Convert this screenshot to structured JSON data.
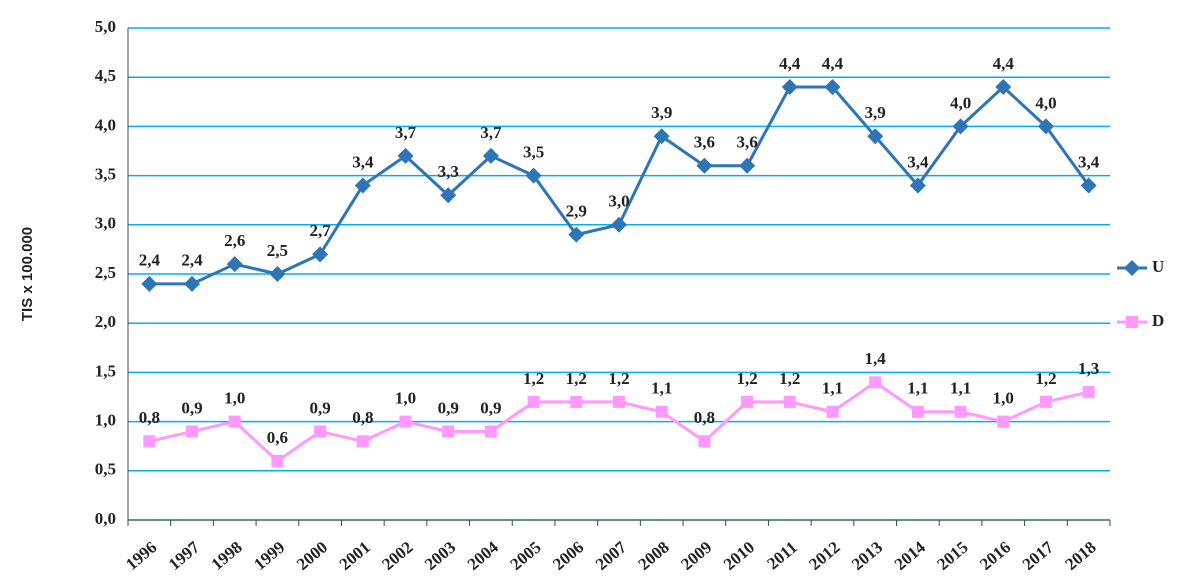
{
  "chart_data": {
    "type": "line",
    "y_label": "TIS x 100.000",
    "categories": [
      "1996",
      "1997",
      "1998",
      "1999",
      "2000",
      "2001",
      "2002",
      "2003",
      "2004",
      "2005",
      "2006",
      "2007",
      "2008",
      "2009",
      "2010",
      "2011",
      "2012",
      "2013",
      "2014",
      "2015",
      "2016",
      "2017",
      "2018"
    ],
    "series": [
      {
        "name": "U",
        "color": "#2e75b6",
        "marker": "diamond",
        "values": [
          2.4,
          2.4,
          2.6,
          2.5,
          2.7,
          3.4,
          3.7,
          3.3,
          3.7,
          3.5,
          2.9,
          3.0,
          3.9,
          3.6,
          3.6,
          4.4,
          4.4,
          3.9,
          3.4,
          4.0,
          4.4,
          4.0,
          3.4
        ],
        "value_labels": [
          "2,4",
          "2,4",
          "2,6",
          "2,5",
          "2,7",
          "3,4",
          "3,7",
          "3,3",
          "3,7",
          "3,5",
          "2,9",
          "3,0",
          "3,9",
          "3,6",
          "3,6",
          "4,4",
          "4,4",
          "3,9",
          "3,4",
          "4,0",
          "4,4",
          "4,0",
          "3,4"
        ]
      },
      {
        "name": "D",
        "color": "#ff99ff",
        "marker": "square",
        "values": [
          0.8,
          0.9,
          1.0,
          0.6,
          0.9,
          0.8,
          1.0,
          0.9,
          0.9,
          1.2,
          1.2,
          1.2,
          1.1,
          0.8,
          1.2,
          1.2,
          1.1,
          1.4,
          1.1,
          1.1,
          1.0,
          1.2,
          1.3
        ],
        "value_labels": [
          "0,8",
          "0,9",
          "1,0",
          "0,6",
          "0,9",
          "0,8",
          "1,0",
          "0,9",
          "0,9",
          "1,2",
          "1,2",
          "1,2",
          "1,1",
          "0,8",
          "1,2",
          "1,2",
          "1,1",
          "1,4",
          "1,1",
          "1,1",
          "1,0",
          "1,2",
          "1,3"
        ]
      }
    ],
    "ylim": [
      0,
      5
    ],
    "yticks": [
      {
        "value": 0,
        "label": "0,0"
      },
      {
        "value": 0.5,
        "label": "0,5"
      },
      {
        "value": 1,
        "label": "1,0"
      },
      {
        "value": 1.5,
        "label": "1,5"
      },
      {
        "value": 2,
        "label": "2,0"
      },
      {
        "value": 2.5,
        "label": "2,5"
      },
      {
        "value": 3,
        "label": "3,0"
      },
      {
        "value": 3.5,
        "label": "3,5"
      },
      {
        "value": 4,
        "label": "4,0"
      },
      {
        "value": 4.5,
        "label": "4,5"
      },
      {
        "value": 5,
        "label": "5,0"
      }
    ],
    "grid": true,
    "grid_color": "#00b0f0",
    "legend": "right"
  }
}
